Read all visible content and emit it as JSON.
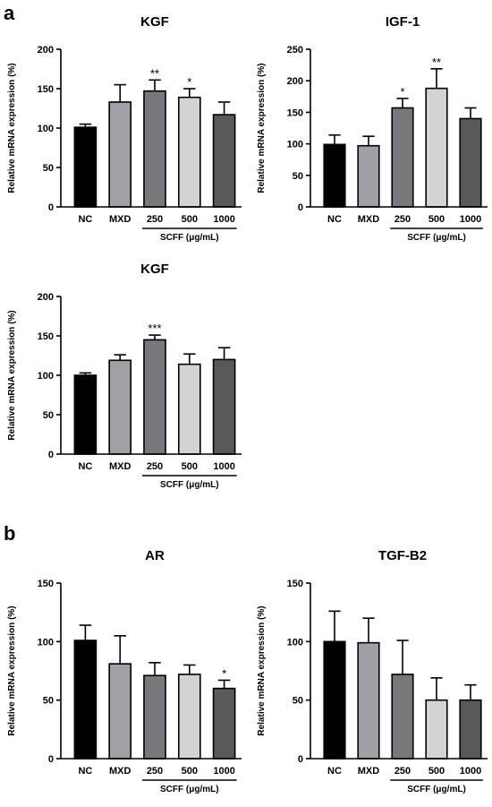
{
  "panels": [
    {
      "label": "a"
    },
    {
      "label": "b"
    }
  ],
  "chart_data": [
    {
      "type": "bar",
      "title": "KGF",
      "ylabel": "Relative mRNA expression (%)",
      "categories": [
        "NC",
        "MXD",
        "250",
        "500",
        "1000"
      ],
      "values": [
        101,
        133,
        147,
        139,
        117
      ],
      "errors": [
        4,
        22,
        14,
        11,
        16
      ],
      "significance": [
        "",
        "",
        "**",
        "*",
        ""
      ],
      "group_label": "SCFF (μg/mL)",
      "ylim": [
        0,
        200
      ],
      "yticks": [
        0,
        50,
        100,
        150,
        200
      ],
      "colors": [
        "#000000",
        "#a0a0a6",
        "#77777c",
        "#d3d3d3",
        "#595959"
      ]
    },
    {
      "type": "bar",
      "title": "IGF-1",
      "ylabel": "Relative mRNA expression (%)",
      "categories": [
        "NC",
        "MXD",
        "250",
        "500",
        "1000"
      ],
      "values": [
        99,
        97,
        157,
        188,
        140
      ],
      "errors": [
        15,
        15,
        15,
        31,
        17
      ],
      "significance": [
        "",
        "",
        "*",
        "**",
        ""
      ],
      "group_label": "SCFF (μg/mL)",
      "ylim": [
        0,
        250
      ],
      "yticks": [
        0,
        50,
        100,
        150,
        200,
        250
      ],
      "colors": [
        "#000000",
        "#a0a0a6",
        "#77777c",
        "#d3d3d3",
        "#595959"
      ]
    },
    {
      "type": "bar",
      "title": "KGF",
      "ylabel": "Relative mRNA expression (%)",
      "categories": [
        "NC",
        "MXD",
        "250",
        "500",
        "1000"
      ],
      "values": [
        100,
        119,
        145,
        114,
        120
      ],
      "errors": [
        3,
        7,
        6,
        13,
        15
      ],
      "significance": [
        "",
        "",
        "***",
        "",
        ""
      ],
      "group_label": "SCFF (μg/mL)",
      "ylim": [
        0,
        200
      ],
      "yticks": [
        0,
        50,
        100,
        150,
        200
      ],
      "colors": [
        "#000000",
        "#a0a0a6",
        "#77777c",
        "#d3d3d3",
        "#595959"
      ]
    },
    {
      "type": "bar",
      "title": "AR",
      "ylabel": "Relative mRNA expression (%)",
      "categories": [
        "NC",
        "MXD",
        "250",
        "500",
        "1000"
      ],
      "values": [
        101,
        81,
        71,
        72,
        60
      ],
      "errors": [
        13,
        24,
        11,
        8,
        7
      ],
      "significance": [
        "",
        "",
        "",
        "",
        "*"
      ],
      "group_label": "SCFF (μg/mL)",
      "ylim": [
        0,
        150
      ],
      "yticks": [
        0,
        50,
        100,
        150
      ],
      "colors": [
        "#000000",
        "#a0a0a6",
        "#77777c",
        "#d3d3d3",
        "#595959"
      ]
    },
    {
      "type": "bar",
      "title": "TGF-B2",
      "ylabel": "Relative mRNA expression (%)",
      "categories": [
        "NC",
        "MXD",
        "250",
        "500",
        "1000"
      ],
      "values": [
        100,
        99,
        72,
        50,
        50
      ],
      "errors": [
        26,
        21,
        29,
        19,
        13
      ],
      "significance": [
        "",
        "",
        "",
        "",
        ""
      ],
      "group_label": "SCFF (μg/mL)",
      "ylim": [
        0,
        150
      ],
      "yticks": [
        0,
        50,
        100,
        150
      ],
      "colors": [
        "#000000",
        "#a0a0a6",
        "#77777c",
        "#d3d3d3",
        "#595959"
      ]
    }
  ]
}
